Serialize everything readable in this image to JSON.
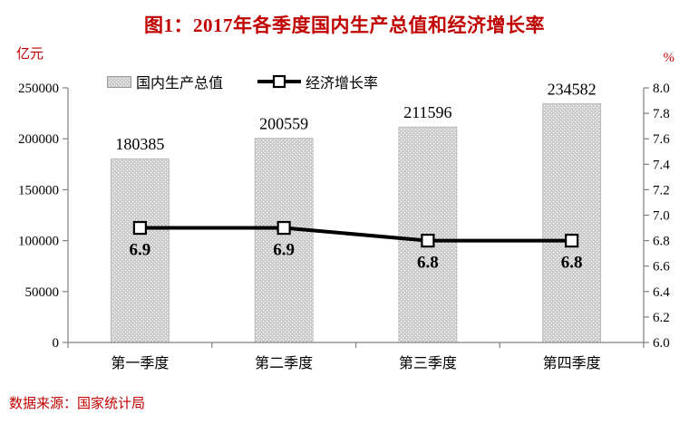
{
  "colors": {
    "accent_red": "#c00000",
    "bar_gray": "#c9c9c9",
    "bar_dot": "#ffffff",
    "bar_edge": "#b3b3b3",
    "line_black": "#000000",
    "axis_gray": "#808080",
    "text_black": "#000000"
  },
  "chart_data": {
    "type": "bar",
    "title": "图1：2017年各季度国内生产总值和经济增长率",
    "categories": [
      "第一季度",
      "第二季度",
      "第三季度",
      "第四季度"
    ],
    "series": [
      {
        "name": "国内生产总值",
        "type": "bar",
        "axis": "left",
        "values": [
          180385,
          200559,
          211596,
          234582
        ],
        "labels": [
          "180385",
          "200559",
          "211596",
          "234582"
        ]
      },
      {
        "name": "经济增长率",
        "type": "line",
        "axis": "right",
        "values": [
          6.9,
          6.9,
          6.8,
          6.8
        ],
        "labels": [
          "6.9",
          "6.9",
          "6.8",
          "6.8"
        ]
      }
    ],
    "left_axis": {
      "unit": "亿元",
      "min": 0,
      "max": 250000,
      "step": 50000,
      "tick_values": [
        0,
        50000,
        100000,
        150000,
        200000,
        250000
      ],
      "tick_labels": [
        "0",
        "50000",
        "100000",
        "150000",
        "200000",
        "250000"
      ]
    },
    "right_axis": {
      "unit": "%",
      "min": 6.0,
      "max": 8.0,
      "step": 0.2,
      "tick_values": [
        6.0,
        6.2,
        6.4,
        6.6,
        6.8,
        7.0,
        7.2,
        7.4,
        7.6,
        7.8,
        8.0
      ],
      "tick_labels": [
        "6.0",
        "6.2",
        "6.4",
        "6.6",
        "6.8",
        "7.0",
        "7.2",
        "7.4",
        "7.6",
        "7.8",
        "8.0"
      ]
    },
    "legend_position": "top",
    "grid": false,
    "source_note": "数据来源：国家统计局"
  }
}
